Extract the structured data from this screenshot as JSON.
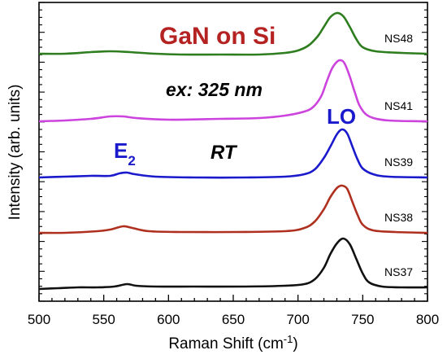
{
  "chart_data": {
    "type": "line",
    "xlabel_main": "Raman Shift (cm",
    "xlabel_sup": "-1",
    "xlabel_close": ")",
    "ylabel": "Intensity (arb. units)",
    "xlim": [
      500,
      800
    ],
    "x_ticks": [
      "500",
      "550",
      "600",
      "650",
      "700",
      "750",
      "800"
    ],
    "y_tick_labels_shown": false,
    "grid": false,
    "series": [
      {
        "name": "NS48",
        "color": "#2e7d1f",
        "points": [
          [
            500,
            66
          ],
          [
            520,
            66
          ],
          [
            540,
            64
          ],
          [
            555,
            63
          ],
          [
            570,
            64
          ],
          [
            590,
            66
          ],
          [
            610,
            67
          ],
          [
            640,
            67
          ],
          [
            670,
            67
          ],
          [
            690,
            65
          ],
          [
            700,
            62
          ],
          [
            708,
            56
          ],
          [
            715,
            45
          ],
          [
            720,
            33
          ],
          [
            725,
            21
          ],
          [
            730,
            16
          ],
          [
            735,
            20
          ],
          [
            740,
            33
          ],
          [
            745,
            48
          ],
          [
            750,
            58
          ],
          [
            760,
            63
          ],
          [
            780,
            65
          ],
          [
            800,
            66
          ]
        ]
      },
      {
        "name": "NS41",
        "color": "#cc44dd",
        "points": [
          [
            500,
            149
          ],
          [
            520,
            148
          ],
          [
            540,
            146
          ],
          [
            555,
            143
          ],
          [
            565,
            143
          ],
          [
            575,
            145
          ],
          [
            600,
            147
          ],
          [
            640,
            146
          ],
          [
            670,
            145
          ],
          [
            690,
            142
          ],
          [
            705,
            137
          ],
          [
            712,
            131
          ],
          [
            718,
            118
          ],
          [
            722,
            101
          ],
          [
            726,
            85
          ],
          [
            730,
            76
          ],
          [
            733,
            74
          ],
          [
            736,
            78
          ],
          [
            740,
            94
          ],
          [
            744,
            114
          ],
          [
            748,
            131
          ],
          [
            755,
            143
          ],
          [
            770,
            148
          ],
          [
            800,
            149
          ]
        ]
      },
      {
        "name": "NS39",
        "color": "#1a1acc",
        "points": [
          [
            500,
            218
          ],
          [
            520,
            217
          ],
          [
            540,
            216
          ],
          [
            555,
            216
          ],
          [
            562,
            213
          ],
          [
            568,
            212
          ],
          [
            574,
            214
          ],
          [
            590,
            217
          ],
          [
            620,
            218
          ],
          [
            660,
            218
          ],
          [
            690,
            217
          ],
          [
            705,
            214
          ],
          [
            713,
            208
          ],
          [
            720,
            194
          ],
          [
            725,
            180
          ],
          [
            730,
            165
          ],
          [
            734,
            159
          ],
          [
            738,
            164
          ],
          [
            742,
            180
          ],
          [
            746,
            196
          ],
          [
            750,
            207
          ],
          [
            758,
            214
          ],
          [
            770,
            217
          ],
          [
            800,
            218
          ]
        ]
      },
      {
        "name": "NS38",
        "color": "#b03020",
        "points": [
          [
            500,
            286
          ],
          [
            520,
            286
          ],
          [
            545,
            284
          ],
          [
            555,
            282
          ],
          [
            565,
            278
          ],
          [
            572,
            280
          ],
          [
            585,
            284
          ],
          [
            610,
            285
          ],
          [
            650,
            285
          ],
          [
            690,
            284
          ],
          [
            705,
            280
          ],
          [
            713,
            272
          ],
          [
            720,
            257
          ],
          [
            725,
            242
          ],
          [
            730,
            231
          ],
          [
            734,
            228
          ],
          [
            738,
            232
          ],
          [
            742,
            248
          ],
          [
            746,
            264
          ],
          [
            750,
            276
          ],
          [
            758,
            283
          ],
          [
            775,
            285
          ],
          [
            800,
            286
          ]
        ]
      },
      {
        "name": "NS37",
        "color": "#111111",
        "points": [
          [
            500,
            355
          ],
          [
            515,
            354
          ],
          [
            530,
            353
          ],
          [
            545,
            353
          ],
          [
            558,
            352
          ],
          [
            568,
            349
          ],
          [
            575,
            351
          ],
          [
            590,
            352
          ],
          [
            620,
            352
          ],
          [
            660,
            352
          ],
          [
            690,
            351
          ],
          [
            705,
            349
          ],
          [
            713,
            343
          ],
          [
            720,
            329
          ],
          [
            725,
            312
          ],
          [
            730,
            299
          ],
          [
            735,
            293
          ],
          [
            740,
            300
          ],
          [
            745,
            318
          ],
          [
            750,
            336
          ],
          [
            755,
            347
          ],
          [
            765,
            352
          ],
          [
            780,
            353
          ],
          [
            800,
            353
          ]
        ]
      }
    ],
    "y_units_note": "intensity values in arbitrary units (higher number = lower on page, pixel-mapped by script)"
  },
  "annotations": {
    "title": "GaN on Si",
    "title_color": "#b52222",
    "excitation": "ex: 325 nm",
    "temperature": "RT",
    "lo_label": "LO",
    "e2_main": "E",
    "e2_sub": "2",
    "peak_label_color": "#1a1acc"
  }
}
